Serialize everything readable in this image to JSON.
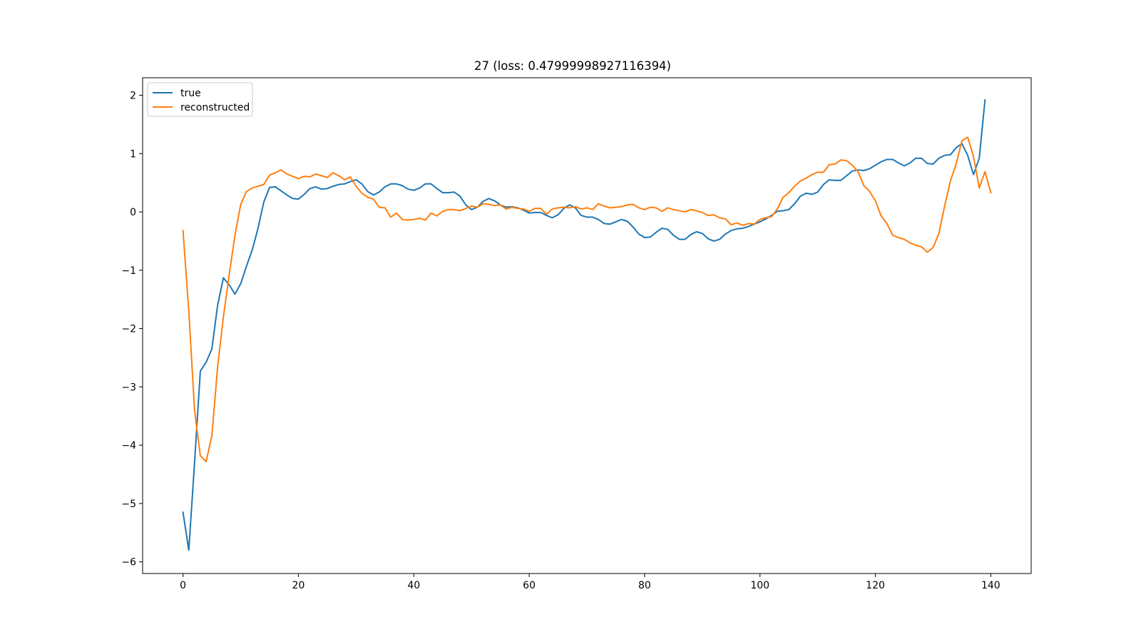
{
  "chart_data": {
    "type": "line",
    "title": "27 (loss: 0.47999998927116394)",
    "xlabel": "",
    "ylabel": "",
    "xlim": [
      -7,
      147
    ],
    "ylim": [
      -6.2,
      2.3
    ],
    "xticks": [
      0,
      20,
      40,
      60,
      80,
      100,
      120,
      140
    ],
    "yticks": [
      -6,
      -5,
      -4,
      -3,
      -2,
      -1,
      0,
      1,
      2
    ],
    "grid": false,
    "legend": {
      "position": "top-left"
    },
    "series": [
      {
        "name": "true",
        "color": "#1f77b4",
        "values": [
          -5.15,
          -5.8,
          -4.3,
          -2.73,
          -2.58,
          -2.35,
          -1.6,
          -1.13,
          -1.25,
          -1.41,
          -1.23,
          -0.93,
          -0.65,
          -0.28,
          0.17,
          0.42,
          0.43,
          0.36,
          0.29,
          0.23,
          0.22,
          0.3,
          0.4,
          0.43,
          0.39,
          0.4,
          0.44,
          0.47,
          0.48,
          0.52,
          0.55,
          0.48,
          0.35,
          0.29,
          0.34,
          0.43,
          0.48,
          0.48,
          0.45,
          0.39,
          0.37,
          0.41,
          0.48,
          0.48,
          0.4,
          0.33,
          0.33,
          0.34,
          0.27,
          0.12,
          0.04,
          0.08,
          0.18,
          0.23,
          0.19,
          0.12,
          0.08,
          0.09,
          0.07,
          0.03,
          -0.02,
          -0.01,
          -0.01,
          -0.06,
          -0.1,
          -0.05,
          0.06,
          0.12,
          0.07,
          -0.06,
          -0.09,
          -0.09,
          -0.13,
          -0.2,
          -0.21,
          -0.17,
          -0.13,
          -0.16,
          -0.26,
          -0.38,
          -0.44,
          -0.43,
          -0.35,
          -0.28,
          -0.3,
          -0.4,
          -0.47,
          -0.47,
          -0.39,
          -0.34,
          -0.37,
          -0.46,
          -0.5,
          -0.47,
          -0.38,
          -0.32,
          -0.29,
          -0.28,
          -0.25,
          -0.21,
          -0.17,
          -0.12,
          -0.06,
          0.01,
          0.02,
          0.04,
          0.14,
          0.27,
          0.32,
          0.3,
          0.34,
          0.47,
          0.55,
          0.54,
          0.54,
          0.62,
          0.7,
          0.72,
          0.71,
          0.74,
          0.8,
          0.86,
          0.9,
          0.9,
          0.84,
          0.79,
          0.84,
          0.92,
          0.92,
          0.83,
          0.82,
          0.92,
          0.97,
          0.98,
          1.1,
          1.17,
          0.97,
          0.64,
          0.92,
          1.92
        ]
      },
      {
        "name": "reconstructed",
        "color": "#ff7f0e",
        "values": [
          -0.32,
          -1.7,
          -3.4,
          -4.18,
          -4.28,
          -3.84,
          -2.65,
          -1.8,
          -1.08,
          -0.4,
          0.13,
          0.35,
          0.41,
          0.44,
          0.47,
          0.63,
          0.67,
          0.72,
          0.65,
          0.61,
          0.57,
          0.61,
          0.6,
          0.65,
          0.62,
          0.59,
          0.67,
          0.62,
          0.55,
          0.6,
          0.44,
          0.32,
          0.25,
          0.22,
          0.08,
          0.07,
          -0.09,
          -0.02,
          -0.13,
          -0.14,
          -0.13,
          -0.11,
          -0.14,
          -0.02,
          -0.07,
          0.01,
          0.04,
          0.04,
          0.02,
          0.06,
          0.1,
          0.08,
          0.14,
          0.13,
          0.11,
          0.12,
          0.05,
          0.08,
          0.06,
          0.05,
          0.01,
          0.06,
          0.06,
          -0.04,
          0.05,
          0.07,
          0.08,
          0.07,
          0.09,
          0.05,
          0.07,
          0.04,
          0.14,
          0.1,
          0.07,
          0.08,
          0.09,
          0.12,
          0.13,
          0.07,
          0.04,
          0.08,
          0.07,
          0.01,
          0.07,
          0.04,
          0.02,
          0.0,
          0.04,
          0.02,
          -0.01,
          -0.06,
          -0.05,
          -0.1,
          -0.12,
          -0.22,
          -0.19,
          -0.23,
          -0.2,
          -0.21,
          -0.13,
          -0.1,
          -0.08,
          0.05,
          0.25,
          0.33,
          0.44,
          0.53,
          0.58,
          0.64,
          0.68,
          0.68,
          0.81,
          0.82,
          0.89,
          0.88,
          0.8,
          0.69,
          0.45,
          0.35,
          0.19,
          -0.07,
          -0.2,
          -0.4,
          -0.44,
          -0.47,
          -0.53,
          -0.57,
          -0.6,
          -0.69,
          -0.61,
          -0.37,
          0.1,
          0.53,
          0.82,
          1.22,
          1.28,
          0.95,
          0.41,
          0.69,
          0.33
        ]
      }
    ]
  }
}
